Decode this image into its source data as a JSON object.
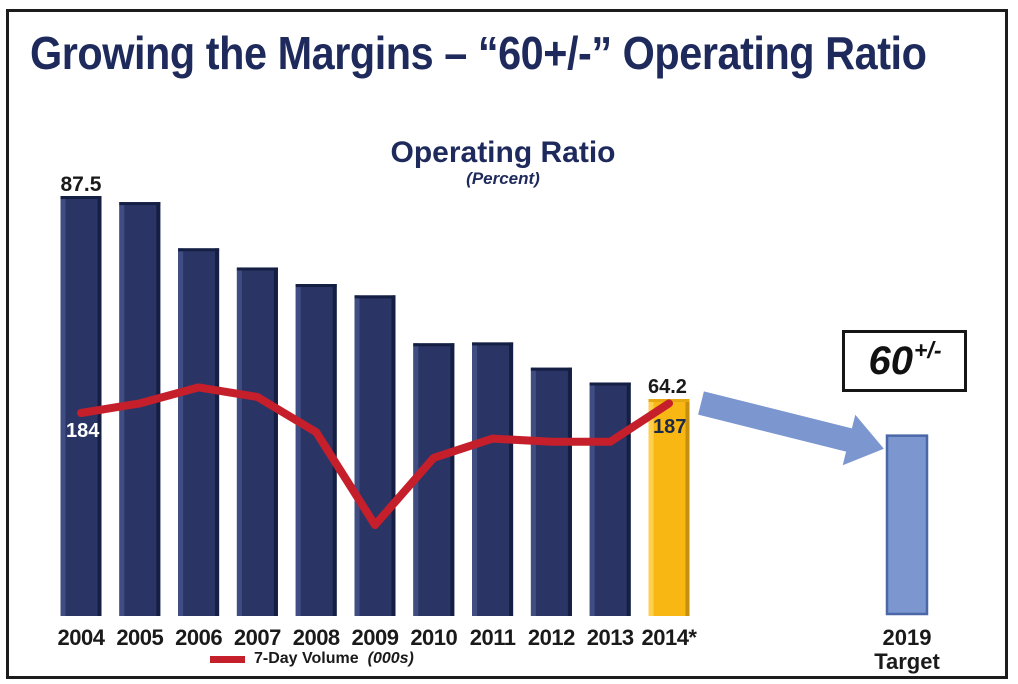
{
  "slide": {
    "title": "Growing the Margins – “60+/-” Operating Ratio"
  },
  "chart_data": {
    "type": "combo-bar-line",
    "title": "Operating Ratio",
    "subtitle": "(Percent)",
    "categories": [
      "2004",
      "2005",
      "2006",
      "2007",
      "2008",
      "2009",
      "2010",
      "2011",
      "2012",
      "2013",
      "2014*"
    ],
    "series": [
      {
        "name": "Operating Ratio",
        "type": "bar",
        "unit": "percent",
        "values": [
          87.5,
          86.8,
          81.5,
          79.3,
          77.4,
          76.1,
          70.6,
          70.7,
          67.8,
          66.1,
          64.2
        ],
        "shown_labels": {
          "first": "87.5",
          "last": "64.2"
        },
        "highlight_last": true
      },
      {
        "name": "7-Day Volume",
        "type": "line",
        "unit": "000s",
        "values": [
          184,
          187,
          192,
          189,
          178,
          149,
          170,
          176,
          175,
          175,
          187
        ],
        "shown_labels": {
          "first": "184",
          "last": "187"
        }
      }
    ],
    "target_bar": {
      "labels": [
        "2019",
        "Target"
      ],
      "value": 60
    },
    "callout": {
      "base": "60",
      "sup": "+/-"
    },
    "legend": {
      "line_label": "7-Day Volume",
      "line_label_suffix": "(000s)"
    },
    "ylim_hint": [
      40,
      90
    ],
    "gridlines": false,
    "legend_position": "bottom"
  },
  "colors": {
    "title_navy": "#1E2A5C",
    "bar_navy": "#2A3566",
    "bar_navy_light": "#3F4D82",
    "bar_navy_dark": "#151E43",
    "bar_gold": "#F9B713",
    "bar_gold_light": "#FFD04F",
    "bar_gold_dark": "#C68F0E",
    "bar_gold_top": "#E7A70F",
    "line_red": "#C41F2B",
    "target_blue": "#7C96D0",
    "target_blue_border": "#4A67A8",
    "label_dark": "#1A1A1A",
    "label_on_gold": "#1C2A4A",
    "label_white": "#FFFFFF"
  }
}
